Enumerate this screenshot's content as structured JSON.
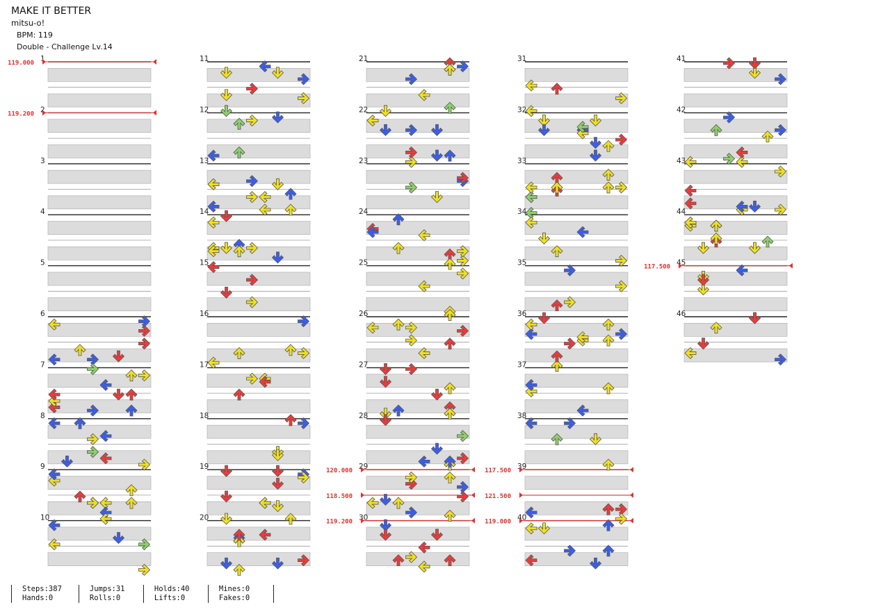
{
  "song": {
    "title": "MAKE IT BETTER",
    "artist": "mitsu-o!",
    "bpm_label": "BPM: 119",
    "difficulty_label": "Double - Challenge Lv.14"
  },
  "measure_labels": [
    "1",
    "2",
    "3",
    "4",
    "5",
    "6",
    "7",
    "8",
    "9",
    "10",
    "11",
    "12",
    "13",
    "14",
    "15",
    "16",
    "17",
    "18",
    "19",
    "20",
    "21",
    "22",
    "23",
    "24",
    "25",
    "26",
    "27",
    "28",
    "29",
    "30",
    "31",
    "32",
    "33",
    "34",
    "35",
    "36",
    "37",
    "38",
    "39",
    "40",
    "41",
    "42",
    "43",
    "44",
    "45",
    "46"
  ],
  "bpm_changes": [
    {
      "measure": 1,
      "bpm": "119.000"
    },
    {
      "measure": 2,
      "bpm": "119.200"
    },
    {
      "measure": 29,
      "bpm": "120.000"
    },
    {
      "measure": 29.5,
      "bpm": "118.500"
    },
    {
      "measure": 30,
      "bpm": "119.200"
    },
    {
      "measure": 39,
      "bpm": "117.500"
    },
    {
      "measure": 39.5,
      "bpm": "121.500"
    },
    {
      "measure": 40,
      "bpm": "119.000"
    },
    {
      "measure": 45,
      "bpm": "117.500"
    }
  ],
  "note_colors": {
    "quarter": "#ee3a3a",
    "eighth": "#3a5ef0",
    "sixteenth": "#f0e020",
    "hold": "#8ed06a"
  },
  "arrow_icons": {
    "left": "left-arrow-icon",
    "down": "down-arrow-icon",
    "up": "up-arrow-icon",
    "right": "right-arrow-icon"
  },
  "stats": [
    {
      "top": "Steps:387",
      "bottom": "Hands:0"
    },
    {
      "top": "Jumps:31",
      "bottom": "Rolls:0"
    },
    {
      "top": "Holds:40",
      "bottom": "Lifts:0"
    },
    {
      "top": "Mines:0",
      "bottom": "Fakes:0"
    }
  ]
}
